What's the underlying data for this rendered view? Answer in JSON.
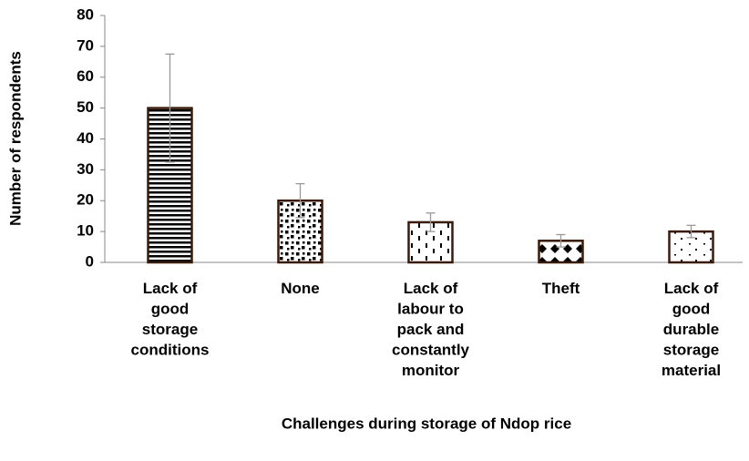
{
  "chart_data": {
    "type": "bar",
    "x_label": "Challenges during storage of Ndop rice",
    "y_label": "Number of respondents",
    "categories": [
      "Lack of good storage conditions",
      "None",
      "Lack of labour to pack and constantly monitor",
      "Theft",
      "Lack of good durable storage material"
    ],
    "values": [
      50,
      20,
      13,
      7,
      10
    ],
    "errors": [
      17.5,
      5.5,
      3,
      2,
      2
    ],
    "ylim": [
      0,
      80
    ],
    "yticks": [
      0,
      10,
      20,
      30,
      40,
      50,
      60,
      70,
      80
    ],
    "grid": false
  }
}
